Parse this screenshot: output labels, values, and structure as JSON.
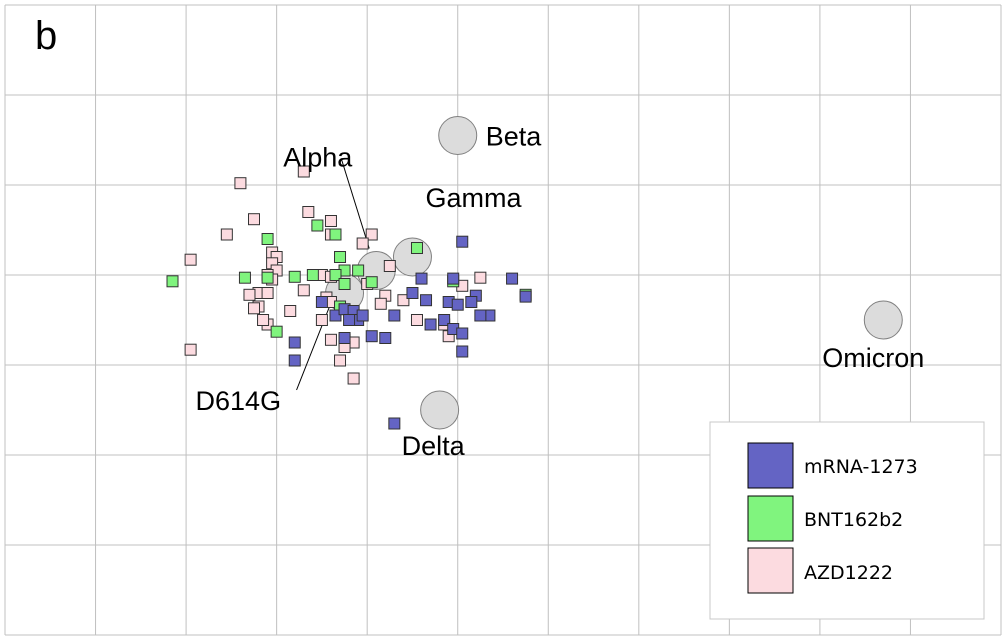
{
  "chart_data": {
    "type": "scatter",
    "panel_label": "b",
    "grid": true,
    "x_range": [
      0,
      11
    ],
    "y_range": [
      0,
      7
    ],
    "colors": {
      "mRNA-1273": "#6464c4",
      "BNT162b2": "#80f47e",
      "AZD1222": "#fcdbe0",
      "variant": "#dcdcdc",
      "grid": "#c0c0c0"
    },
    "variants": [
      {
        "name": "Beta",
        "x": 5.0,
        "y": 5.55
      },
      {
        "name": "Gamma",
        "x": 4.5,
        "y": 4.2
      },
      {
        "name": "Alpha",
        "x": 4.1,
        "y": 4.05
      },
      {
        "name": "D614G",
        "x": 3.75,
        "y": 3.8
      },
      {
        "name": "Delta",
        "x": 4.8,
        "y": 2.5
      },
      {
        "name": "Omicron",
        "x": 9.7,
        "y": 3.5
      }
    ],
    "legend": {
      "position": "bottom-right",
      "entries": [
        "mRNA-1273",
        "BNT162b2",
        "AZD1222"
      ]
    },
    "series": [
      {
        "name": "mRNA-1273",
        "points": [
          [
            5.05,
            4.37
          ],
          [
            5.6,
            3.96
          ],
          [
            5.75,
            3.76
          ],
          [
            4.6,
            3.96
          ],
          [
            4.95,
            3.96
          ],
          [
            5.2,
            3.77
          ],
          [
            4.5,
            3.8
          ],
          [
            4.65,
            3.72
          ],
          [
            4.9,
            3.7
          ],
          [
            5.0,
            3.67
          ],
          [
            5.35,
            3.55
          ],
          [
            5.25,
            3.55
          ],
          [
            5.15,
            3.7
          ],
          [
            3.5,
            3.7
          ],
          [
            3.65,
            3.55
          ],
          [
            3.75,
            3.62
          ],
          [
            3.85,
            3.6
          ],
          [
            3.9,
            3.5
          ],
          [
            3.8,
            3.5
          ],
          [
            3.95,
            3.55
          ],
          [
            4.3,
            3.55
          ],
          [
            4.7,
            3.45
          ],
          [
            4.85,
            3.5
          ],
          [
            4.95,
            3.4
          ],
          [
            5.05,
            3.35
          ],
          [
            4.05,
            3.32
          ],
          [
            4.2,
            3.3
          ],
          [
            3.75,
            3.3
          ],
          [
            3.2,
            3.25
          ],
          [
            3.2,
            3.05
          ],
          [
            5.05,
            3.15
          ],
          [
            4.3,
            2.35
          ]
        ]
      },
      {
        "name": "BNT162b2",
        "points": [
          [
            3.45,
            4.55
          ],
          [
            2.9,
            4.4
          ],
          [
            3.65,
            4.45
          ],
          [
            4.55,
            4.3
          ],
          [
            3.7,
            4.2
          ],
          [
            3.9,
            4.05
          ],
          [
            3.75,
            4.05
          ],
          [
            3.65,
            4.0
          ],
          [
            3.4,
            4.0
          ],
          [
            3.2,
            3.98
          ],
          [
            2.65,
            3.97
          ],
          [
            3.75,
            3.9
          ],
          [
            4.05,
            3.92
          ],
          [
            4.95,
            3.93
          ],
          [
            5.75,
            3.78
          ],
          [
            1.85,
            3.93
          ],
          [
            2.9,
            3.97
          ],
          [
            3.0,
            3.37
          ],
          [
            3.7,
            3.65
          ]
        ]
      },
      {
        "name": "AZD1222",
        "points": [
          [
            3.3,
            5.15
          ],
          [
            2.6,
            5.02
          ],
          [
            3.35,
            4.7
          ],
          [
            2.75,
            4.62
          ],
          [
            3.6,
            4.6
          ],
          [
            2.45,
            4.45
          ],
          [
            3.6,
            4.45
          ],
          [
            4.05,
            4.45
          ],
          [
            3.95,
            4.35
          ],
          [
            2.95,
            4.25
          ],
          [
            3.0,
            4.2
          ],
          [
            2.05,
            4.17
          ],
          [
            2.95,
            4.13
          ],
          [
            3.0,
            4.05
          ],
          [
            2.9,
            4.0
          ],
          [
            2.95,
            3.95
          ],
          [
            3.5,
            4.0
          ],
          [
            3.6,
            3.98
          ],
          [
            4.25,
            4.1
          ],
          [
            5.25,
            3.97
          ],
          [
            4.0,
            3.9
          ],
          [
            5.05,
            3.88
          ],
          [
            3.3,
            3.83
          ],
          [
            3.55,
            3.75
          ],
          [
            2.8,
            3.8
          ],
          [
            2.9,
            3.8
          ],
          [
            2.7,
            3.78
          ],
          [
            3.6,
            3.7
          ],
          [
            4.2,
            3.77
          ],
          [
            4.4,
            3.72
          ],
          [
            4.15,
            3.68
          ],
          [
            2.8,
            3.65
          ],
          [
            2.75,
            3.63
          ],
          [
            3.15,
            3.6
          ],
          [
            2.9,
            3.45
          ],
          [
            2.85,
            3.5
          ],
          [
            3.5,
            3.5
          ],
          [
            4.55,
            3.5
          ],
          [
            4.85,
            3.45
          ],
          [
            4.9,
            3.32
          ],
          [
            3.6,
            3.28
          ],
          [
            3.75,
            3.28
          ],
          [
            3.85,
            3.25
          ],
          [
            3.75,
            3.2
          ],
          [
            2.05,
            3.17
          ],
          [
            3.7,
            3.05
          ],
          [
            3.85,
            2.85
          ]
        ]
      }
    ]
  }
}
